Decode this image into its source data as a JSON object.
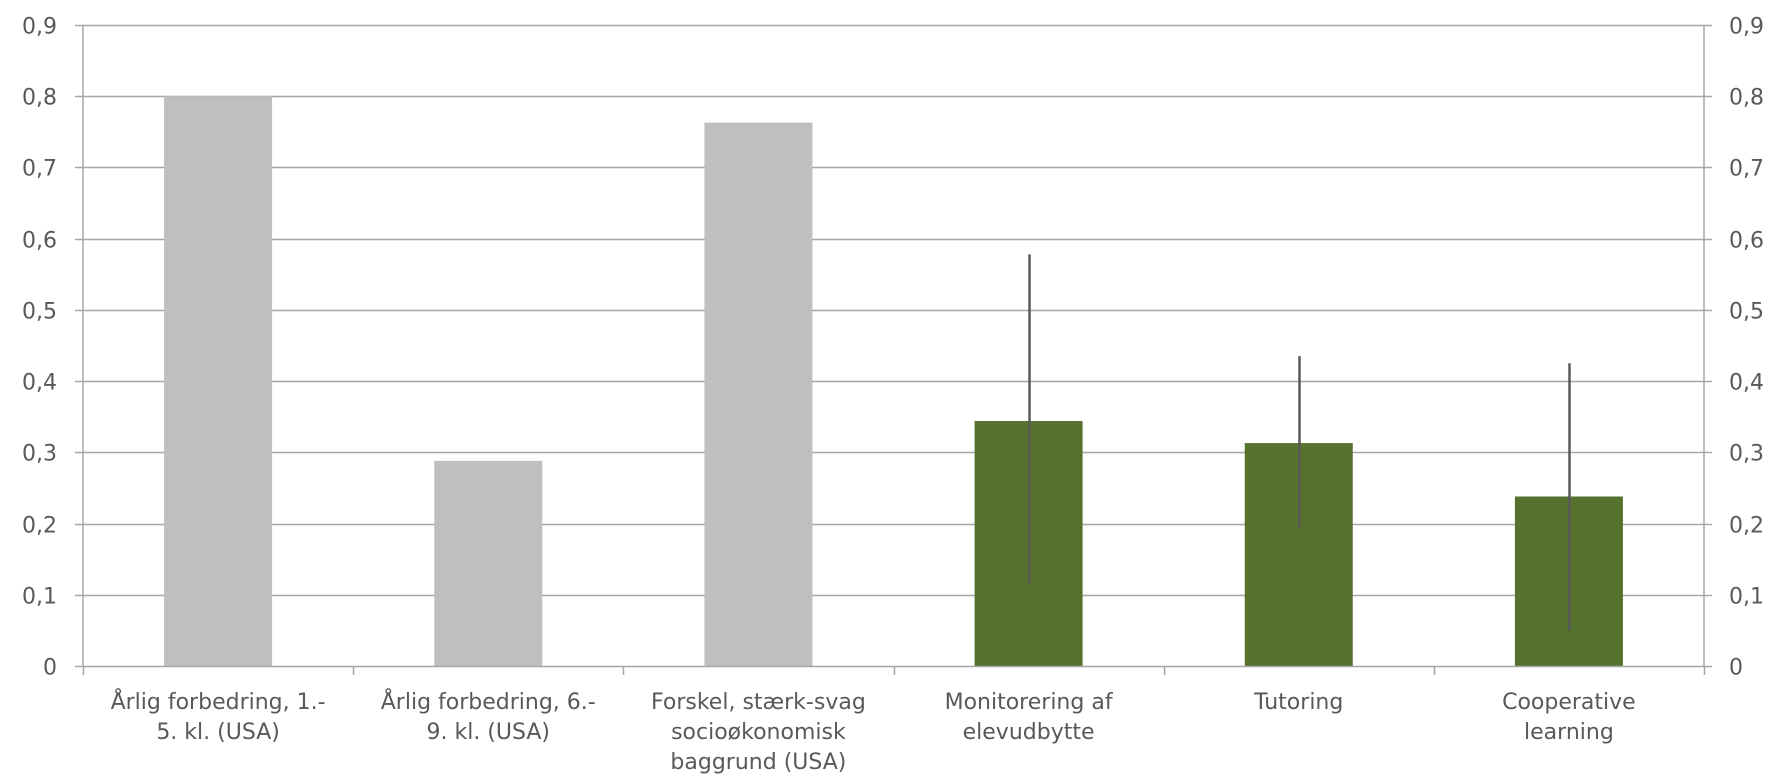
{
  "chart_data": {
    "type": "bar",
    "title": "",
    "xlabel": "",
    "ylabel": "",
    "ylim": [
      0,
      0.9
    ],
    "yticks": [
      "0",
      "0,1",
      "0,2",
      "0,3",
      "0,4",
      "0,5",
      "0,6",
      "0,7",
      "0,8",
      "0,9"
    ],
    "secondary_yticks": [
      "0",
      "0,1",
      "0,2",
      "0,3",
      "0,4",
      "0,5",
      "0,6",
      "0,7",
      "0,8",
      "0,9"
    ],
    "grid": true,
    "legend": "none",
    "categories": [
      [
        "Årlig forbedring, 1.-",
        "5. kl. (USA)"
      ],
      [
        "Årlig forbedring, 6.-",
        "9. kl. (USA)"
      ],
      [
        "Forskel, stærk-svag",
        "socioøkonomisk",
        "baggrund (USA)"
      ],
      [
        "Monitorering af",
        "elevudbytte"
      ],
      [
        "Tutoring"
      ],
      [
        "Cooperative",
        "learning"
      ]
    ],
    "values": [
      0.8,
      0.288,
      0.763,
      0.344,
      0.313,
      0.238
    ],
    "error_bars": [
      null,
      null,
      null,
      [
        0.115,
        0.578
      ],
      [
        0.195,
        0.435
      ],
      [
        0.05,
        0.425
      ]
    ],
    "colors": [
      "#bfbfbf",
      "#bfbfbf",
      "#bfbfbf",
      "#56722f",
      "#56722f",
      "#56722f"
    ],
    "error_bar_color": "#595959",
    "gridline_color": "#a6a6a6",
    "axis_color": "#a6a6a6"
  }
}
